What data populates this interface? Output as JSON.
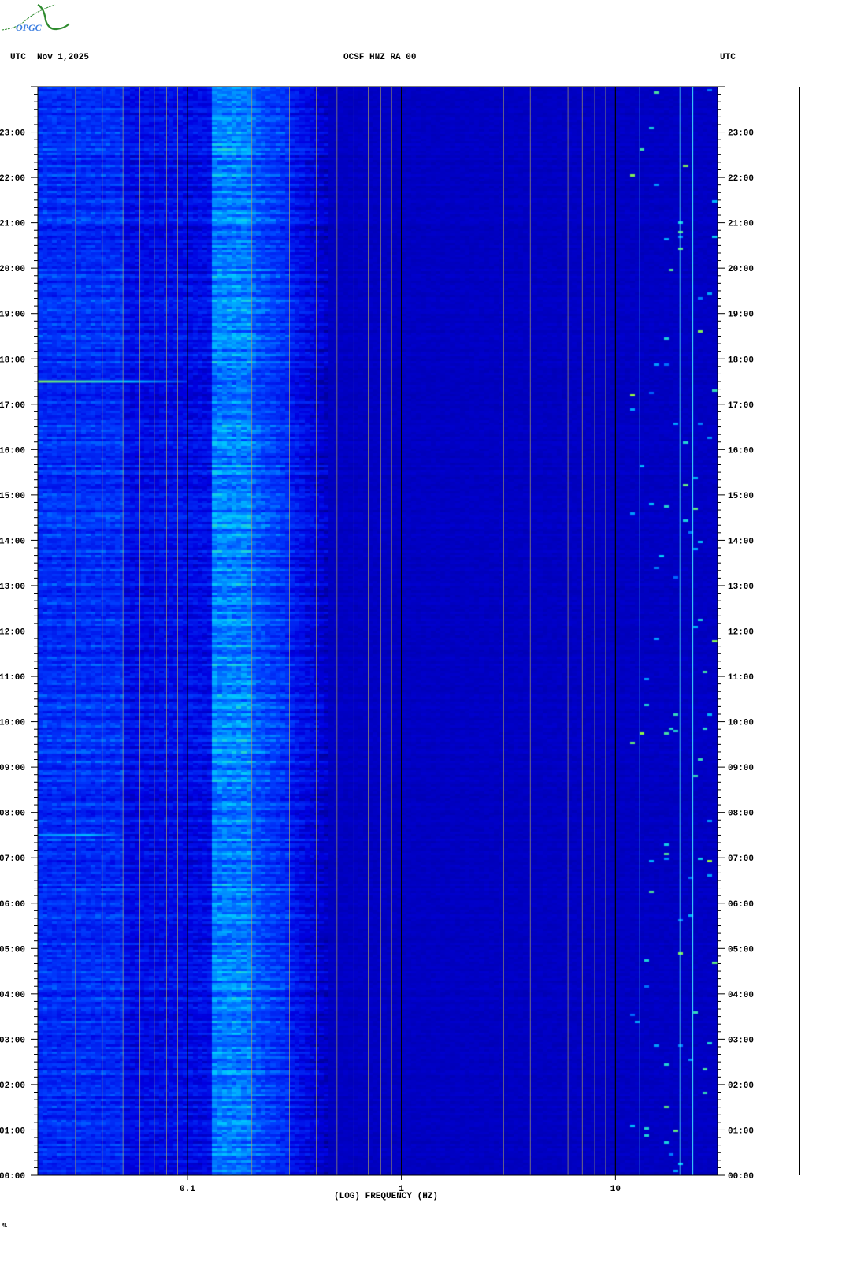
{
  "header": {
    "logo_text": "OPGC",
    "left_label": "UTC",
    "date": "Nov 1,2025",
    "station": "OCSF HNZ RA 00",
    "right_label": "UTC"
  },
  "footer_mark": "ML",
  "chart_data": {
    "type": "heatmap",
    "title": "OCSF HNZ RA 00",
    "xlabel": "(LOG) FREQUENCY (HZ)",
    "ylabel": "UTC",
    "x_scale": "log",
    "xlim": [
      0.02,
      30
    ],
    "x_ticks": [
      0.1,
      1,
      10
    ],
    "x_tick_labels": [
      "0.1",
      "1",
      "10"
    ],
    "ylim": [
      "00:00",
      "24:00"
    ],
    "y_tick_labels": [
      "00:00",
      "01:00",
      "02:00",
      "03:00",
      "04:00",
      "05:00",
      "06:00",
      "07:00",
      "08:00",
      "09:00",
      "10:00",
      "11:00",
      "12:00",
      "13:00",
      "14:00",
      "15:00",
      "16:00",
      "17:00",
      "18:00",
      "19:00",
      "20:00",
      "21:00",
      "22:00",
      "23:00"
    ],
    "y_minor_tick_minutes": 10,
    "grid": true,
    "colormap": [
      "#00008c",
      "#0000e0",
      "#0040ff",
      "#00c8ff",
      "#c8ff00",
      "#ff0000"
    ],
    "features": [
      {
        "freq_hz": [
          0.13,
          0.4
        ],
        "time": [
          "00:00",
          "24:00"
        ]
      },
      {
        "freq_hz": [
          0.02,
          0.1
        ],
        "time": "17:30"
      },
      {
        "freq_hz": [
          0.02,
          0.05
        ],
        "time": "07:30"
      }
    ]
  }
}
